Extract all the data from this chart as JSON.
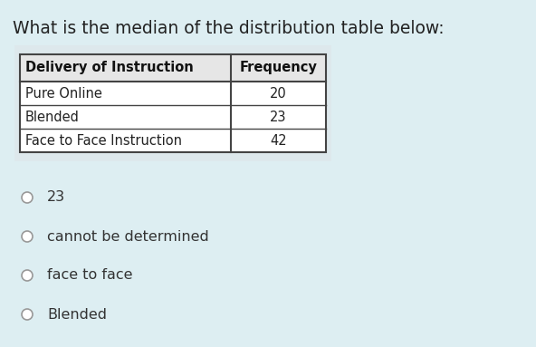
{
  "title": "What is the median of the distribution table below:",
  "title_fontsize": 13.5,
  "title_color": "#222222",
  "background_color": "#ddeef2",
  "table_header": [
    "Delivery of Instruction",
    "Frequency"
  ],
  "table_rows": [
    [
      "Pure Online",
      "20"
    ],
    [
      "Blended",
      "23"
    ],
    [
      "Face to Face Instruction",
      "42"
    ]
  ],
  "choices": [
    "23",
    "cannot be determined",
    "face to face",
    "Blended"
  ],
  "choice_fontsize": 11.5,
  "circle_color": "#999999",
  "table_white_bg": "#e8f3f5",
  "table_border_color": "#444444",
  "text_color": "#222222",
  "row_text_color": "#333333"
}
